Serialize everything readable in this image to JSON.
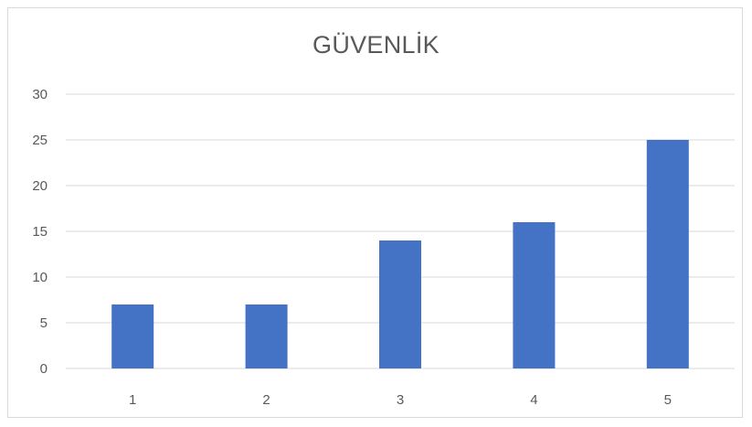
{
  "chart_data": {
    "type": "bar",
    "title": "GÜVENLİK",
    "categories": [
      "1",
      "2",
      "3",
      "4",
      "5"
    ],
    "values": [
      7,
      7,
      14,
      16,
      25
    ],
    "ylim": [
      0,
      30
    ],
    "yticks": [
      0,
      5,
      10,
      15,
      20,
      25,
      30
    ],
    "xlabel": "",
    "ylabel": "",
    "grid": true,
    "legend": "none",
    "colors": {
      "bar": "#4472c4",
      "grid": "#d9d9d9",
      "text": "#595959"
    }
  }
}
